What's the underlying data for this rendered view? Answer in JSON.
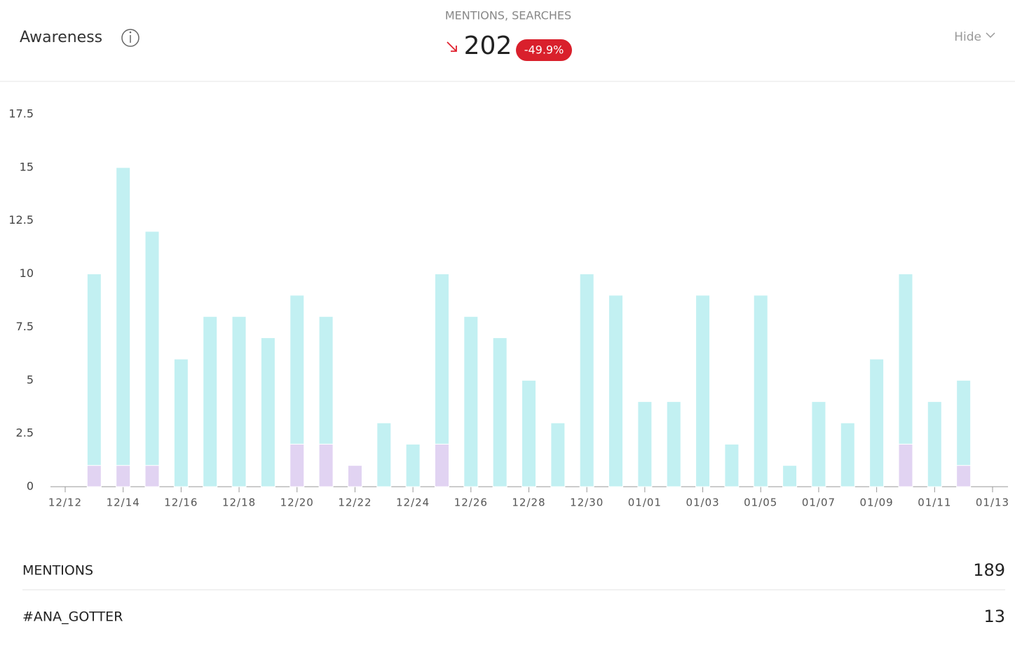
{
  "header": {
    "title": "Awareness",
    "summary_label": "MENTIONS, SEARCHES",
    "total": "202",
    "change": "-49.9%",
    "hide_label": "Hide"
  },
  "chart_data": {
    "type": "stacked-bar",
    "categories": [
      "12/12",
      null,
      "12/14",
      null,
      "12/16",
      null,
      "12/18",
      null,
      "12/20",
      null,
      "12/22",
      null,
      "12/24",
      null,
      "12/26",
      null,
      "12/28",
      null,
      "12/30",
      null,
      "01/01",
      null,
      "01/03",
      null,
      "01/05",
      null,
      "01/07",
      null,
      "01/09",
      null,
      "01/11",
      null,
      "01/13"
    ],
    "series": [
      {
        "color": "#e1d3f2",
        "values": [
          null,
          1,
          1,
          1,
          0,
          0,
          0,
          0,
          2,
          2,
          1,
          0,
          0,
          2,
          0,
          0,
          0,
          0,
          0,
          0,
          0,
          0,
          0,
          0,
          0,
          0,
          0,
          0,
          0,
          2,
          0,
          1,
          null
        ]
      },
      {
        "color": "#c2f0f2",
        "values": [
          null,
          9,
          14,
          11,
          6,
          8,
          8,
          7,
          7,
          6,
          0,
          3,
          2,
          8,
          8,
          7,
          5,
          3,
          10,
          9,
          4,
          4,
          9,
          2,
          9,
          1,
          4,
          3,
          6,
          8,
          4,
          4,
          null
        ]
      }
    ],
    "ylim": [
      0,
      17.5
    ],
    "yticks": [
      0,
      2.5,
      5,
      7.5,
      10,
      12.5,
      15,
      17.5
    ],
    "grid": false
  },
  "rows": [
    {
      "label": "MENTIONS",
      "value": "189"
    },
    {
      "label": "#ANA_GOTTER",
      "value": "13"
    }
  ]
}
